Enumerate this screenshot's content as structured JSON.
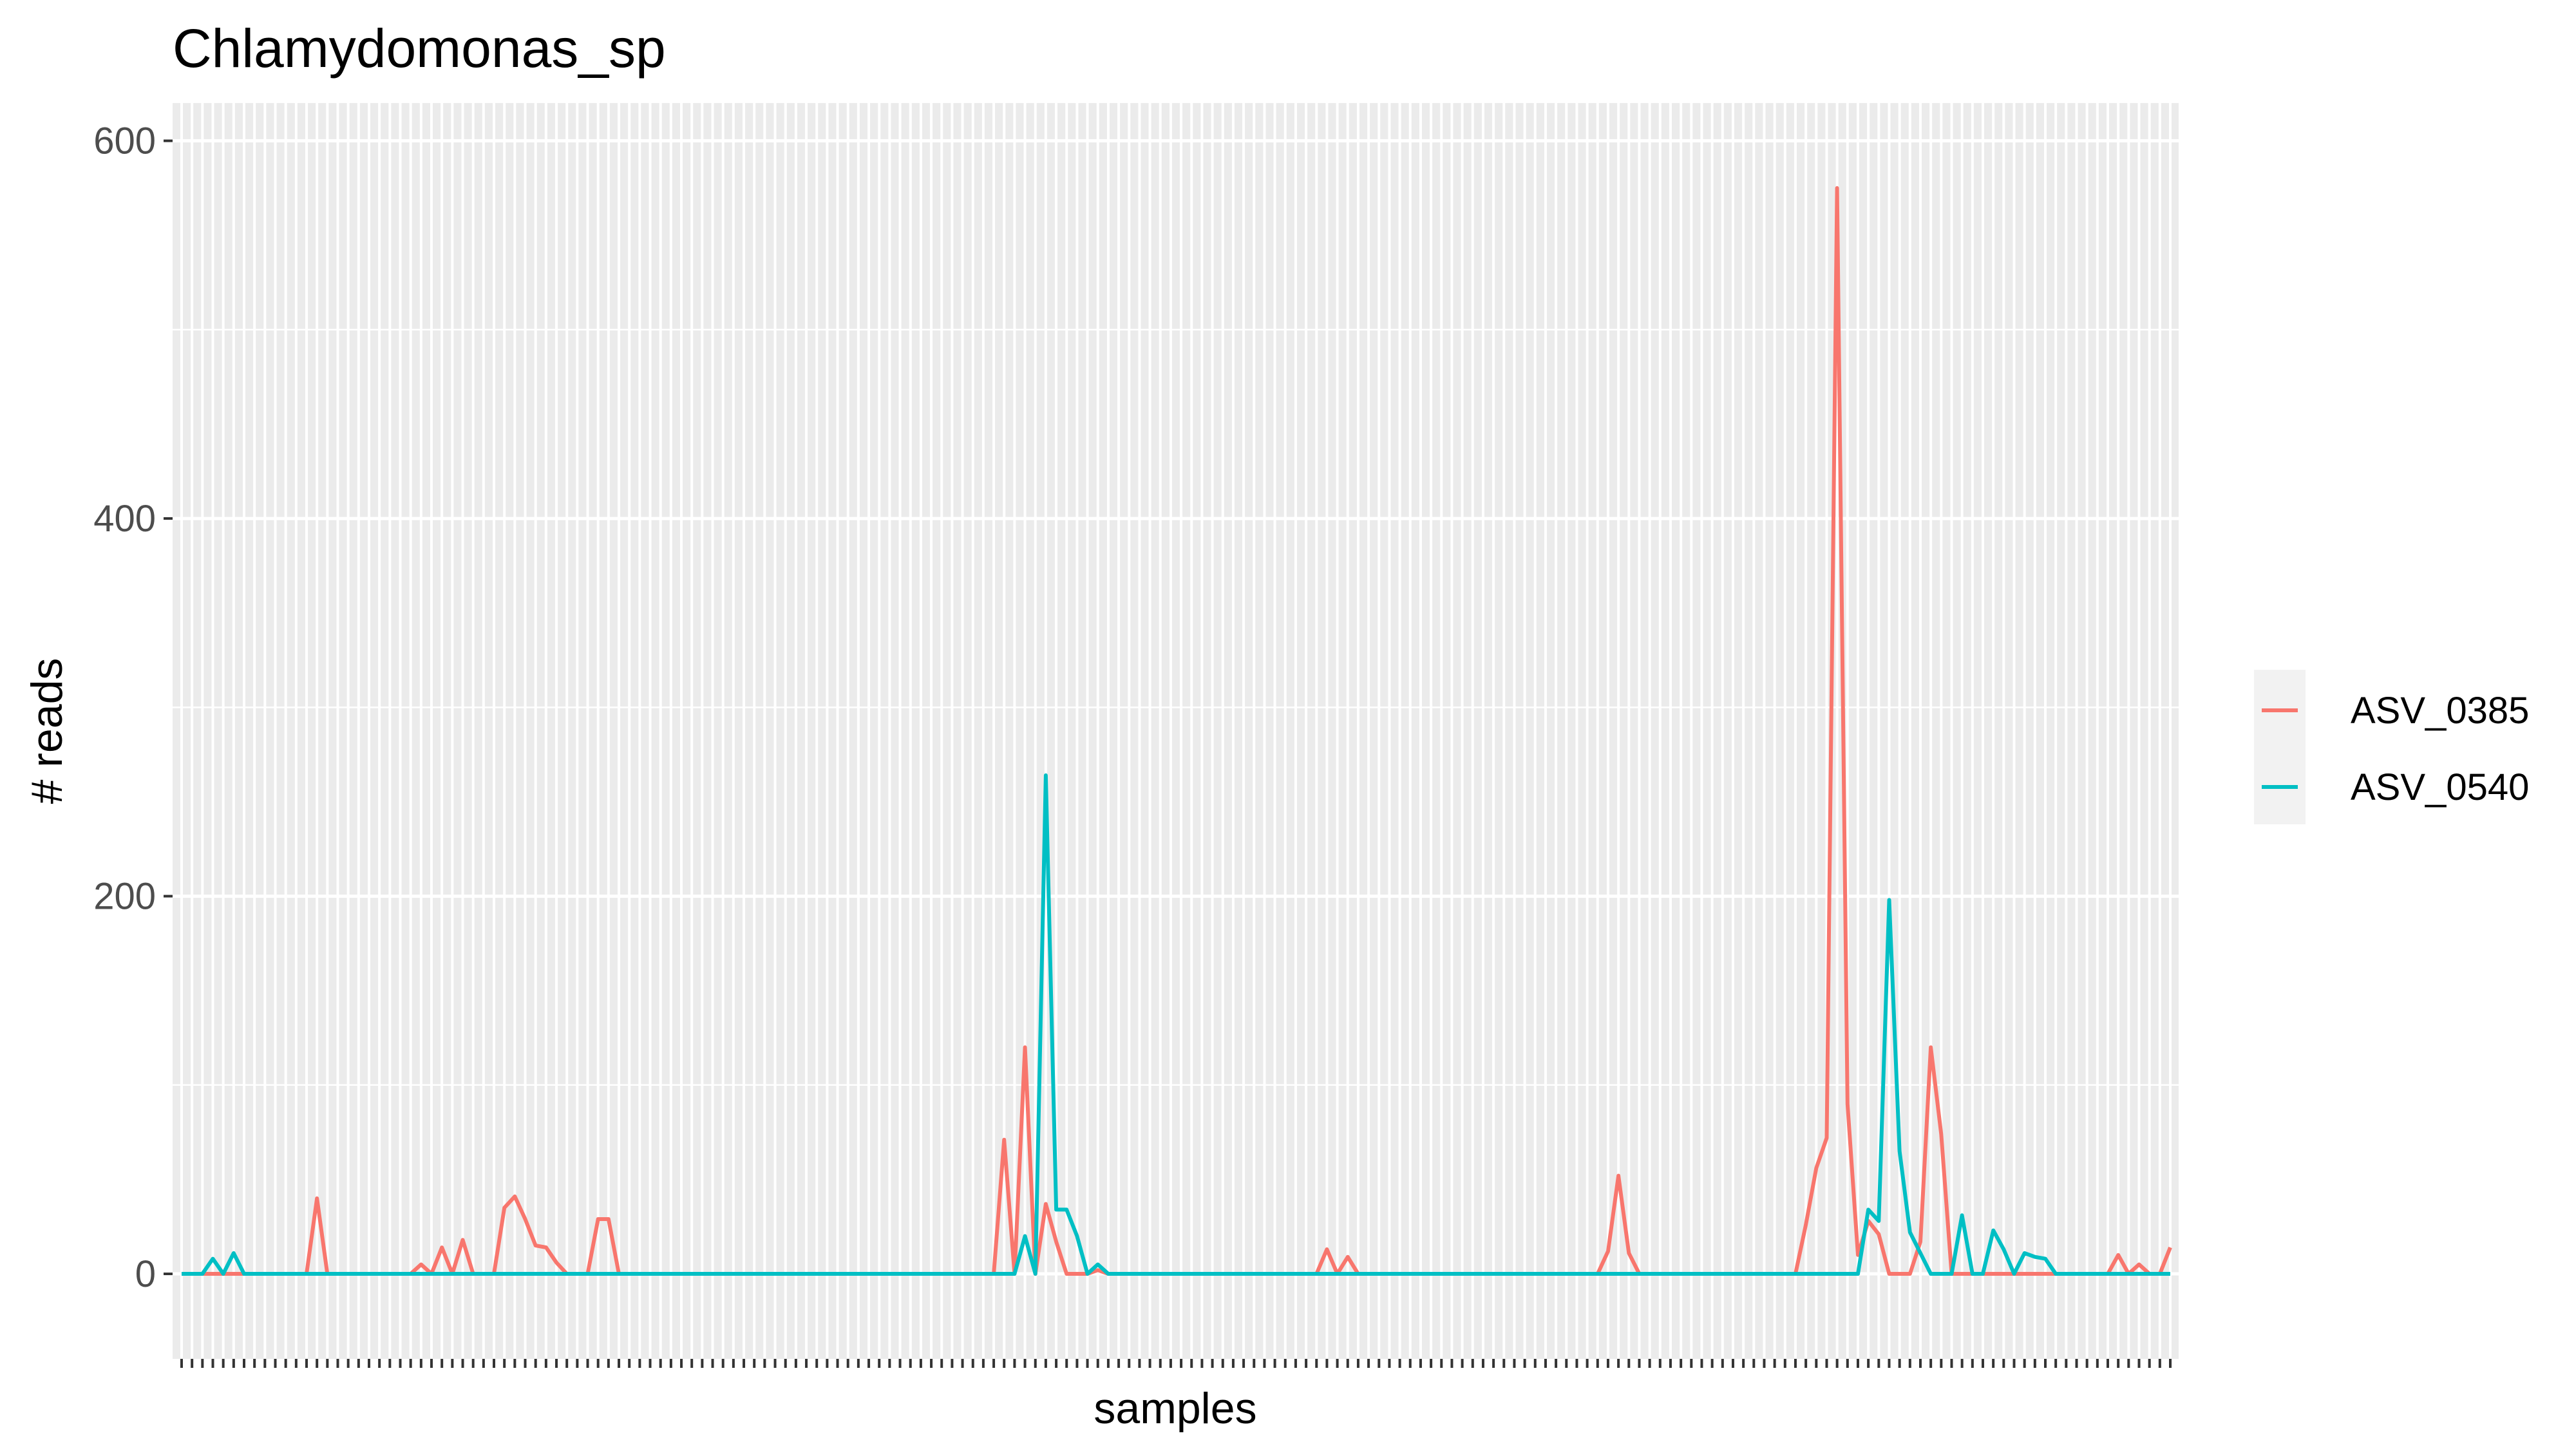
{
  "chart_data": {
    "type": "line",
    "title": "Chlamydomonas_sp",
    "xlabel": "samples",
    "ylabel": "# reads",
    "ylim": [
      -45,
      620
    ],
    "y_ticks": [
      0,
      200,
      400,
      600
    ],
    "grid": true,
    "legend_position": "right",
    "n_samples": 192,
    "series": [
      {
        "name": "ASV_0385",
        "color": "#F8766D",
        "points": [
          [
            12,
            0
          ],
          [
            13,
            40
          ],
          [
            14,
            0
          ],
          [
            22,
            0
          ],
          [
            23,
            5
          ],
          [
            24,
            0
          ],
          [
            25,
            14
          ],
          [
            26,
            0
          ],
          [
            27,
            18
          ],
          [
            28,
            0
          ],
          [
            31,
            35
          ],
          [
            32,
            41
          ],
          [
            33,
            29
          ],
          [
            34,
            15
          ],
          [
            35,
            14
          ],
          [
            36,
            6
          ],
          [
            37,
            0
          ],
          [
            39,
            0
          ],
          [
            40,
            29
          ],
          [
            41,
            29
          ],
          [
            42,
            0
          ],
          [
            78,
            0
          ],
          [
            79,
            71
          ],
          [
            80,
            0
          ],
          [
            81,
            120
          ],
          [
            82,
            0
          ],
          [
            83,
            37
          ],
          [
            84,
            17
          ],
          [
            85,
            0
          ],
          [
            87,
            0
          ],
          [
            88,
            2
          ],
          [
            89,
            0
          ],
          [
            109,
            0
          ],
          [
            110,
            13
          ],
          [
            111,
            0
          ],
          [
            112,
            9
          ],
          [
            113,
            0
          ],
          [
            136,
            0
          ],
          [
            137,
            12
          ],
          [
            138,
            52
          ],
          [
            139,
            11
          ],
          [
            140,
            0
          ],
          [
            155,
            0
          ],
          [
            156,
            26
          ],
          [
            157,
            56
          ],
          [
            158,
            72
          ],
          [
            159,
            575
          ],
          [
            160,
            90
          ],
          [
            161,
            10
          ],
          [
            162,
            28
          ],
          [
            163,
            21
          ],
          [
            164,
            0
          ],
          [
            166,
            0
          ],
          [
            167,
            17
          ],
          [
            168,
            120
          ],
          [
            169,
            74
          ],
          [
            170,
            0
          ],
          [
            185,
            0
          ],
          [
            186,
            10
          ],
          [
            187,
            0
          ],
          [
            188,
            5
          ],
          [
            189,
            0
          ],
          [
            190,
            0
          ],
          [
            191,
            14
          ]
        ]
      },
      {
        "name": "ASV_0540",
        "color": "#00BFC4",
        "points": [
          [
            0,
            0
          ],
          [
            2,
            0
          ],
          [
            3,
            8
          ],
          [
            5,
            11
          ],
          [
            6,
            0
          ],
          [
            79,
            0
          ],
          [
            80,
            0
          ],
          [
            81,
            20
          ],
          [
            82,
            0
          ],
          [
            83,
            264
          ],
          [
            84,
            34
          ],
          [
            85,
            34
          ],
          [
            86,
            20
          ],
          [
            87,
            0
          ],
          [
            88,
            5
          ],
          [
            89,
            0
          ],
          [
            161,
            0
          ],
          [
            162,
            34
          ],
          [
            163,
            28
          ],
          [
            164,
            198
          ],
          [
            165,
            65
          ],
          [
            166,
            22
          ],
          [
            167,
            11
          ],
          [
            168,
            0
          ],
          [
            170,
            0
          ],
          [
            171,
            31
          ],
          [
            172,
            0
          ],
          [
            173,
            0
          ],
          [
            174,
            23
          ],
          [
            175,
            13
          ],
          [
            176,
            0
          ],
          [
            177,
            11
          ],
          [
            178,
            9
          ],
          [
            179,
            8
          ],
          [
            180,
            0
          ],
          [
            191,
            0
          ]
        ]
      }
    ]
  }
}
